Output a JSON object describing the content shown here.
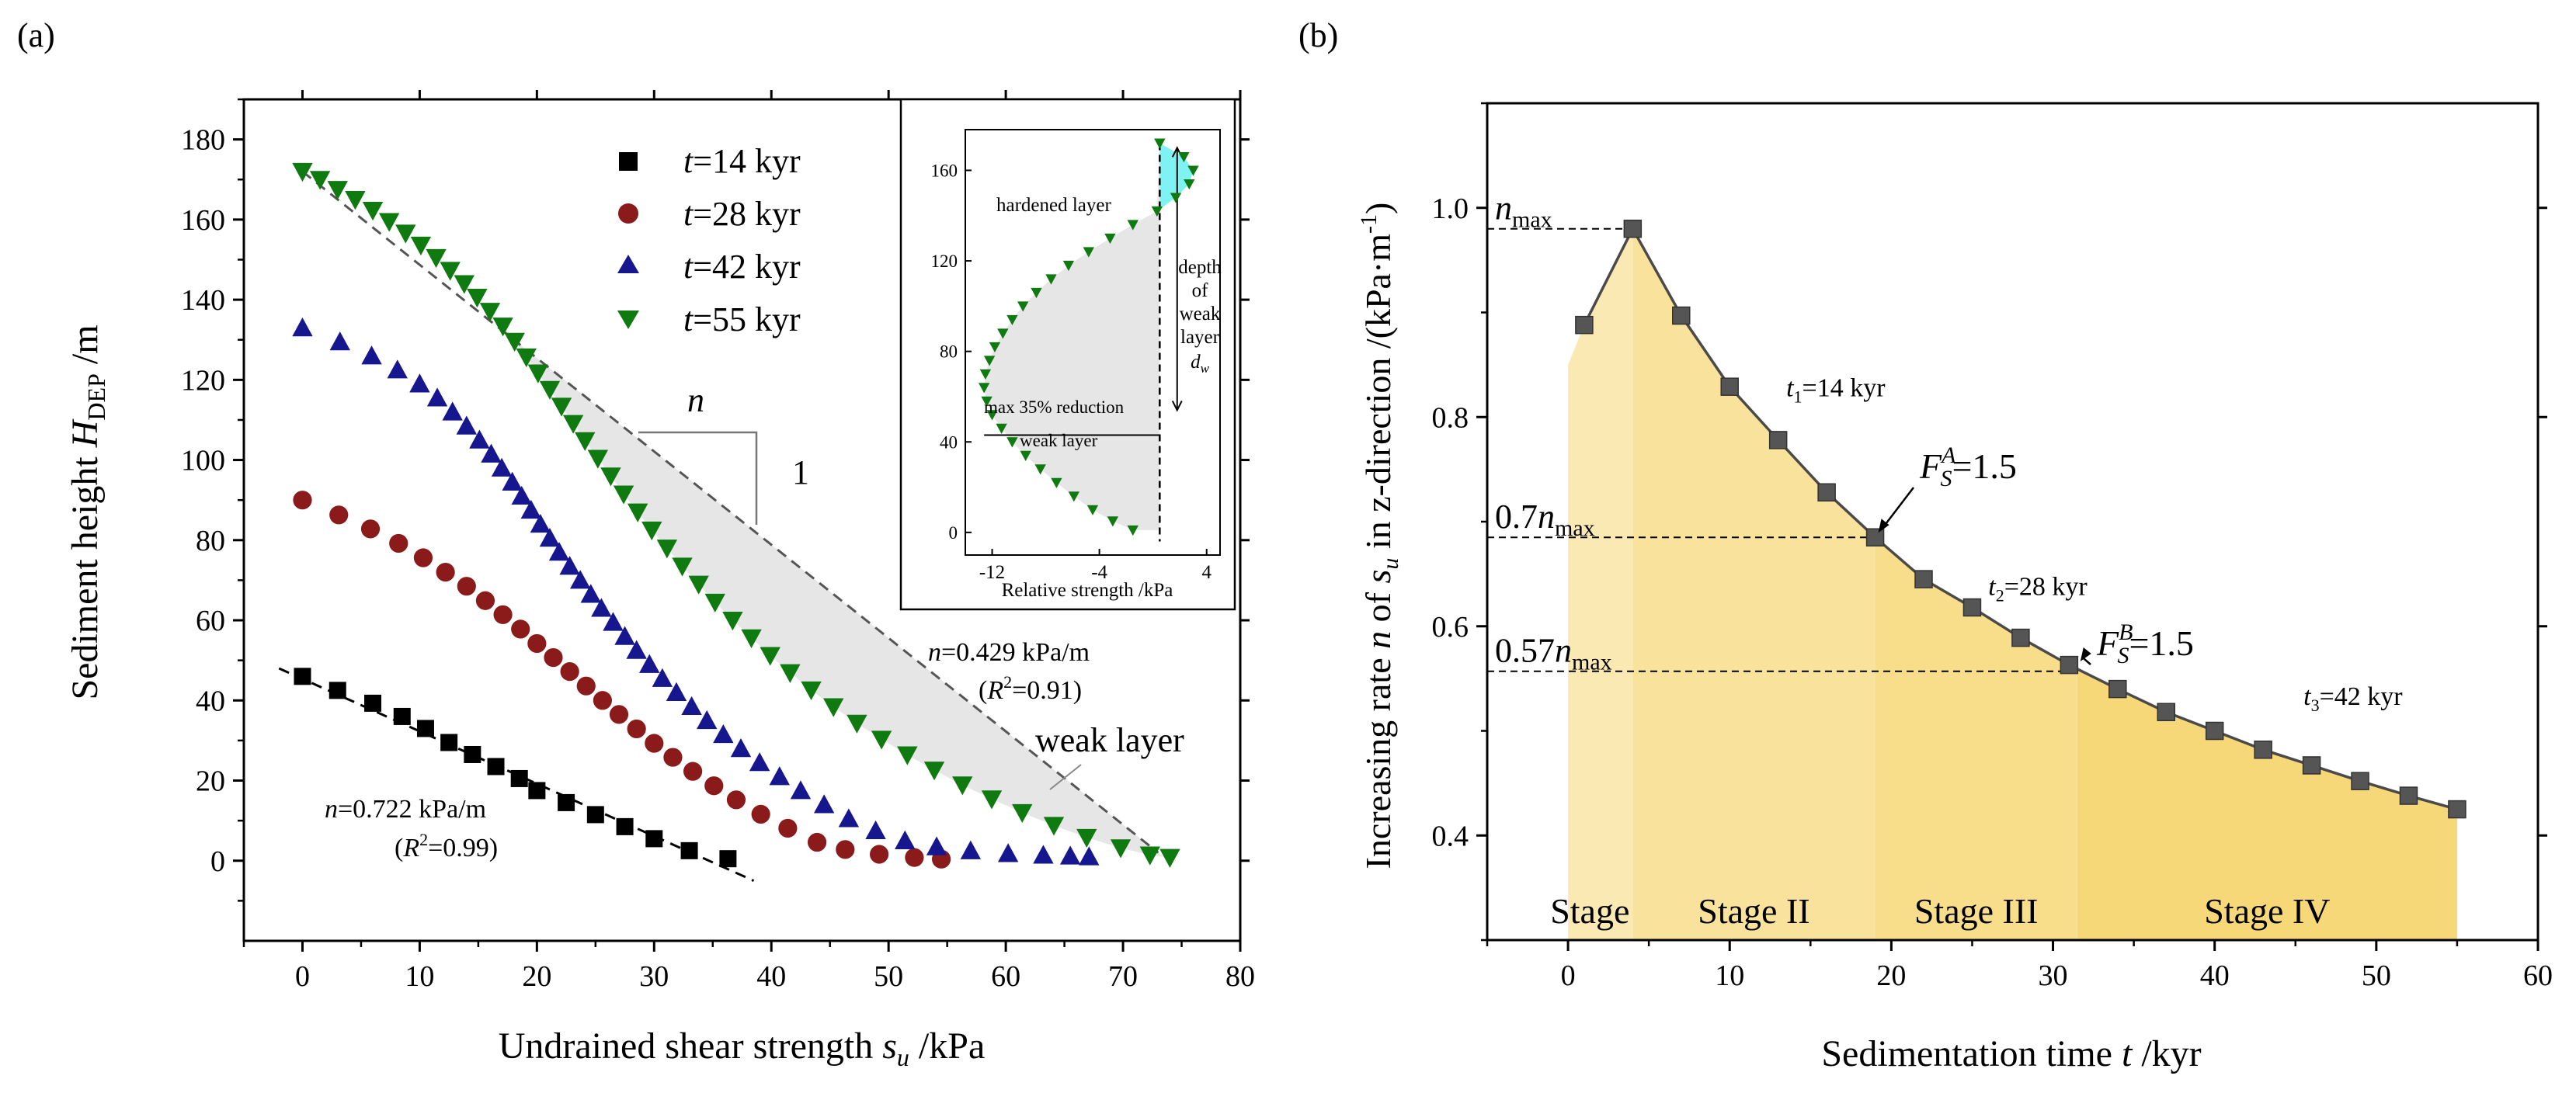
{
  "panels": {
    "a": "(a)",
    "b": "(b)"
  },
  "colors": {
    "t14": "#000000",
    "t28": "#8b1a1a",
    "t42": "#16168f",
    "t55": "#0f7a0f",
    "cyan": "#7ff3f3",
    "grey_fill": "#e6e6e6",
    "stage1": "#fbe9b4",
    "stage2": "#f9e29b",
    "stage3": "#f8de8b",
    "stage4": "#f6d878",
    "line_b": "#4a4a4a"
  },
  "chart_data": [
    {
      "id": "a",
      "type": "scatter",
      "title": "",
      "xlabel_main": "Undrained shear strength ",
      "xlabel_var": "s",
      "xlabel_sub": "u",
      "xlabel_unit": " /kPa",
      "ylabel_main": "Sediment height ",
      "ylabel_var": "H",
      "ylabel_sub": "DEP",
      "ylabel_unit": " /m",
      "xlim": [
        -5,
        80
      ],
      "ylim": [
        -20,
        190
      ],
      "xticks": [
        0,
        10,
        20,
        30,
        40,
        50,
        60,
        70,
        80
      ],
      "yticks": [
        0,
        20,
        40,
        60,
        80,
        100,
        120,
        140,
        160,
        180
      ],
      "series": [
        {
          "name": "t=14 kyr",
          "label_t": "t",
          "label_rest": "=14 kyr",
          "marker": "square",
          "color": "#000000",
          "x": [
            0,
            3,
            6,
            8.5,
            10.5,
            12.5,
            14.5,
            16.5,
            18.5,
            20,
            22.5,
            25,
            27.5,
            30,
            33,
            36.3
          ],
          "y": [
            46,
            42.5,
            39.3,
            36,
            33,
            29.5,
            26.5,
            23.5,
            20.5,
            17.5,
            14.5,
            11.5,
            8.5,
            5.5,
            2.5,
            0.5
          ]
        },
        {
          "name": "t=28 kyr",
          "label_t": "t",
          "label_rest": "=28 kyr",
          "marker": "circle",
          "color": "#8b1a1a",
          "x": [
            0,
            3.1,
            5.8,
            8.2,
            10.3,
            12.2,
            14,
            15.6,
            17.1,
            18.6,
            20,
            21.4,
            22.8,
            24.2,
            25.6,
            27,
            28.5,
            30,
            31.6,
            33.3,
            35.1,
            37,
            39.1,
            41.4,
            43.9,
            46.3,
            49.2,
            52.2,
            54.5
          ],
          "y": [
            90,
            86.3,
            82.8,
            79.2,
            75.6,
            72,
            68.5,
            64.9,
            61.4,
            57.8,
            54.2,
            50.7,
            47.2,
            43.6,
            40,
            36.5,
            32.9,
            29.3,
            25.8,
            22.3,
            18.7,
            15.2,
            11.6,
            8.1,
            4.6,
            2.8,
            1.6,
            0.8,
            0.4
          ]
        },
        {
          "name": "t=42 kyr",
          "label_t": "t",
          "label_rest": "=42 kyr",
          "marker": "triangle-up",
          "color": "#16168f",
          "x": [
            0,
            3.2,
            5.9,
            8.1,
            10,
            11.5,
            12.8,
            14,
            15.1,
            16.1,
            17,
            17.9,
            18.7,
            19.5,
            20.3,
            21.1,
            21.9,
            22.8,
            23.7,
            24.6,
            25.5,
            26.5,
            27.5,
            28.5,
            29.6,
            30.7,
            31.9,
            33.2,
            34.5,
            35.9,
            37.4,
            39,
            40.7,
            42.5,
            44.5,
            46.6,
            48.9,
            51.4,
            54.1,
            57,
            60.2,
            63.2,
            65.5,
            67.1
          ],
          "y": [
            133,
            129.5,
            126,
            122.5,
            119,
            115.5,
            112,
            108.5,
            105,
            101.5,
            98,
            94.5,
            91,
            87.5,
            84,
            80.5,
            77,
            73.5,
            70,
            66.5,
            63,
            59.5,
            56,
            52.5,
            49,
            45.5,
            42,
            38.5,
            35,
            31.5,
            28,
            24.5,
            21,
            17.5,
            14,
            10.5,
            7.5,
            5,
            3.5,
            2.5,
            1.8,
            1.4,
            1.2,
            1
          ]
        },
        {
          "name": "t=55 kyr",
          "label_t": "t",
          "label_rest": "=55 kyr",
          "marker": "triangle-down",
          "color": "#0f7a0f",
          "x": [
            0,
            1.5,
            3,
            4.5,
            6,
            7.4,
            8.8,
            10.1,
            11.4,
            12.6,
            13.8,
            14.9,
            16,
            17.1,
            18.1,
            19.1,
            20.1,
            21.1,
            22.1,
            23.1,
            24.1,
            25.2,
            26.3,
            27.4,
            28.6,
            29.8,
            31.1,
            32.4,
            33.8,
            35.2,
            36.7,
            38.3,
            39.9,
            41.6,
            43.4,
            45.3,
            47.3,
            49.4,
            51.6,
            53.9,
            56.3,
            58.8,
            61.4,
            64.1,
            66.9,
            69.8,
            72.3,
            74
          ],
          "y": [
            172,
            170,
            167.5,
            165,
            162.3,
            159.5,
            156.6,
            153.6,
            150.5,
            147.3,
            144,
            140.6,
            137.1,
            133.4,
            129.6,
            125.7,
            121.7,
            117.6,
            113.4,
            109.1,
            104.8,
            100.4,
            96,
            91.5,
            87,
            82.5,
            78,
            73.5,
            69,
            64.5,
            60,
            55.6,
            51.2,
            46.9,
            42.6,
            38.4,
            34.3,
            30.3,
            26.4,
            22.6,
            18.9,
            15.4,
            12,
            8.8,
            5.8,
            3.2,
            1.4,
            0.8
          ]
        }
      ],
      "fits": [
        {
          "n": "n",
          "text": "=0.722 kPa/m",
          "r2_prefix": "(",
          "r2_var": "R",
          "r2_rest": "=0.99)",
          "x": [
            -2,
            38.5
          ],
          "y": [
            48,
            -5
          ]
        },
        {
          "n": "n",
          "text": "=0.429 kPa/m",
          "r2_prefix": "(",
          "r2_var": "R",
          "r2_rest": "=0.91)",
          "x": [
            0,
            73
          ],
          "y": [
            172,
            2
          ]
        }
      ],
      "annotations": {
        "slope_n": "n",
        "slope_1": "1",
        "weak_layer": "weak layer"
      },
      "inset": {
        "xlabel": "Relative strength /kPa",
        "xlim": [
          -14,
          5
        ],
        "ylim": [
          -10,
          178
        ],
        "xticks": [
          -12,
          -4,
          4
        ],
        "yticks": [
          0,
          40,
          80,
          120,
          160
        ],
        "text_hardened": "hardened layer",
        "text_reduction": "max 35% reduction",
        "text_weak": "weak layer",
        "text_depth": [
          "depth",
          "of",
          "weak",
          "layer"
        ],
        "text_dw": "d",
        "text_dw_sub": "w",
        "x": [
          0.5,
          2.3,
          3.0,
          2.7,
          1.7,
          0.3,
          -1.5,
          -3.2,
          -4.8,
          -6.3,
          -7.6,
          -8.7,
          -9.7,
          -10.5,
          -11.2,
          -11.8,
          -12.2,
          -12.5,
          -12.6,
          -12.4,
          -12.0,
          -11.3,
          -10.5,
          -9.5,
          -8.4,
          -7.2,
          -5.9,
          -4.5,
          -3.0,
          -1.5
        ],
        "y": [
          172,
          166,
          160,
          154,
          148,
          142,
          136,
          130,
          124,
          118,
          112,
          106,
          100,
          94,
          88,
          82,
          76,
          70,
          64,
          58,
          52,
          46,
          40,
          34,
          28,
          22,
          16,
          10,
          5,
          1
        ]
      }
    },
    {
      "id": "b",
      "type": "line",
      "title": "",
      "xlabel_main": "Sedimentation time ",
      "xlabel_var": "t",
      "xlabel_unit": " /kyr",
      "ylabel": "Increasing rate n of s_u in z-direction /(kPa·m^-1)",
      "ylabel_parts": {
        "a": "Increasing rate ",
        "n": "n",
        "b": " of ",
        "s": "s",
        "u": "u",
        "c": " in z-direction /(kPa·m",
        "exp": "-1",
        "d": ")"
      },
      "xlim": [
        -5,
        60
      ],
      "ylim": [
        0.3,
        1.1
      ],
      "xticks": [
        0,
        10,
        20,
        30,
        40,
        50,
        60
      ],
      "yticks": [
        0.4,
        0.6,
        0.8,
        1.0
      ],
      "ytick_labels": [
        "0.4",
        "0.6",
        "0.8",
        "1.0"
      ],
      "x": [
        1,
        4,
        7,
        10,
        13,
        16,
        19,
        22,
        25,
        28,
        31,
        34,
        37,
        40,
        43,
        46,
        49,
        52,
        55
      ],
      "y": [
        0.888,
        0.98,
        0.897,
        0.829,
        0.778,
        0.728,
        0.685,
        0.645,
        0.618,
        0.589,
        0.563,
        0.54,
        0.518,
        0.5,
        0.482,
        0.467,
        0.452,
        0.438,
        0.425
      ],
      "stages": [
        {
          "label": "Stage I",
          "from": 0,
          "to": 4
        },
        {
          "label": "Stage II",
          "from": 4,
          "to": 19
        },
        {
          "label": "Stage III",
          "from": 19,
          "to": 31.5
        },
        {
          "label": "Stage IV",
          "from": 31.5,
          "to": 55
        }
      ],
      "ref_lines": [
        {
          "y": 0.98,
          "to_x": 4,
          "label_pre": "",
          "label_n": "n",
          "label_sub": "max"
        },
        {
          "y": 0.685,
          "to_x": 19,
          "label_pre": "0.7",
          "label_n": "n",
          "label_sub": "max"
        },
        {
          "y": 0.557,
          "to_x": 31.5,
          "label_pre": "0.57",
          "label_n": "n",
          "label_sub": "max"
        }
      ],
      "fs_labels": [
        {
          "F": "F",
          "sub": "S",
          "sup": "A",
          "rest": "=1.5",
          "x": 19,
          "y": 0.685
        },
        {
          "F": "F",
          "sub": "S",
          "sup": "B",
          "rest": "=1.5",
          "x": 31.5,
          "y": 0.562
        }
      ],
      "t_labels": [
        {
          "t": "t",
          "sub": "1",
          "rest": "=14 kyr",
          "x": 13.5,
          "y": 0.82
        },
        {
          "t": "t",
          "sub": "2",
          "rest": "=28 kyr",
          "x": 26,
          "y": 0.63
        },
        {
          "t": "t",
          "sub": "3",
          "rest": "=42 kyr",
          "x": 45.5,
          "y": 0.525
        }
      ]
    }
  ]
}
